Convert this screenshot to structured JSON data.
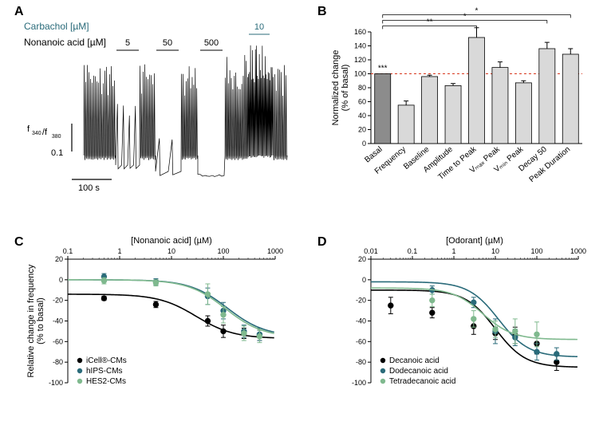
{
  "panelA": {
    "label": "A",
    "carbachol_label": "Carbachol [µM]",
    "carbachol_color": "#2a6b7a",
    "carbachol_conc": "10",
    "nonanoic_label": "Nonanoic acid [µM]",
    "nonanoic_concs": [
      "5",
      "50",
      "500"
    ],
    "y_scale_label": "f",
    "y_sub1": "340",
    "y_sub2": "380",
    "y_scale_divider": "/f",
    "y_scale_val": "0.1",
    "x_scale_val": "100 s",
    "trace_color": "#000000"
  },
  "panelB": {
    "label": "B",
    "ylabel_line1": "Normalized change",
    "ylabel_line2": "(% of basal)",
    "ylim": [
      0,
      160
    ],
    "ytick_step": 20,
    "ref_line": 100,
    "ref_line_color": "#d9381e",
    "categories": [
      "Basal",
      "Frequency",
      "Baseline",
      "Amplitude",
      "Time to Peak",
      "Vₘₐₓ Peak",
      "Vₘᵢₙ Peak",
      "Decay 50",
      "Peak Duration"
    ],
    "values": [
      100,
      55,
      96,
      83,
      152,
      109,
      87,
      136,
      128
    ],
    "errors": [
      0,
      6,
      2,
      3,
      14,
      8,
      3,
      9,
      8
    ],
    "bar_colors": [
      "#8c8c8c",
      "#d9d9d9",
      "#d9d9d9",
      "#d9d9d9",
      "#d9d9d9",
      "#d9d9d9",
      "#d9d9d9",
      "#d9d9d9",
      "#d9d9d9"
    ],
    "bar_border": "#000000",
    "sig_markers": [
      {
        "from": 0,
        "to": 4,
        "label": "**",
        "y": 168
      },
      {
        "from": 0,
        "to": 7,
        "label": "*",
        "y": 178
      },
      {
        "from": 0,
        "to": 8,
        "label": "*",
        "y": 188
      }
    ],
    "basal_star": "***",
    "label_fontsize": 10
  },
  "panelC": {
    "label": "C",
    "xlabel": "[Nonanoic acid] (µM)",
    "ylabel_line1": "Relative change in frequency",
    "ylabel_line2": "(% to basal)",
    "xlim": [
      0.1,
      1000
    ],
    "xticks": [
      0.1,
      1,
      10,
      100,
      1000
    ],
    "ylim": [
      -100,
      20
    ],
    "ytick_step": 20,
    "series": [
      {
        "name": "iCell®-CMs",
        "color": "#000000",
        "x": [
          0.5,
          5,
          50,
          100,
          250,
          500
        ],
        "y": [
          -18,
          -24,
          -40,
          -50,
          -52,
          -54
        ],
        "err": [
          2,
          3,
          5,
          6,
          5,
          5
        ],
        "curve_plateau_top": -14,
        "curve_plateau_bot": -57,
        "curve_ec50": 30
      },
      {
        "name": "hIPS-CMs",
        "color": "#2a6b7a",
        "x": [
          0.5,
          5,
          50,
          100,
          250,
          500
        ],
        "y": [
          3,
          -2,
          -16,
          -30,
          -50,
          -53
        ],
        "err": [
          3,
          3,
          8,
          8,
          6,
          6
        ],
        "curve_plateau_top": 0,
        "curve_plateau_bot": -55,
        "curve_ec50": 120
      },
      {
        "name": "HES2-CMs",
        "color": "#7fb98e",
        "x": [
          0.5,
          5,
          50,
          100,
          250,
          500
        ],
        "y": [
          -1,
          -3,
          -14,
          -34,
          -52,
          -55
        ],
        "err": [
          3,
          3,
          10,
          8,
          7,
          6
        ],
        "curve_plateau_top": 0,
        "curve_plateau_bot": -56,
        "curve_ec50": 110
      }
    ],
    "label_fontsize": 11
  },
  "panelD": {
    "label": "D",
    "xlabel": "[Odorant] (µM)",
    "ylabel_line1": "",
    "ylabel_line2": "",
    "xlim": [
      0.01,
      1000
    ],
    "xticks": [
      0.01,
      0.1,
      1,
      10,
      100,
      1000
    ],
    "ylim": [
      -100,
      20
    ],
    "ytick_step": 20,
    "series": [
      {
        "name": "Decanoic acid",
        "color": "#000000",
        "x": [
          0.03,
          0.3,
          3,
          10,
          30,
          100,
          300
        ],
        "y": [
          -25,
          -32,
          -45,
          -52,
          -54,
          -62,
          -80
        ],
        "err": [
          8,
          5,
          8,
          6,
          8,
          10,
          8
        ],
        "curve_plateau_top": -10,
        "curve_plateau_bot": -85,
        "curve_ec50": 10
      },
      {
        "name": "Dodecanoic acid",
        "color": "#2a6b7a",
        "x": [
          0.3,
          3,
          10,
          30,
          100,
          300
        ],
        "y": [
          -10,
          -22,
          -50,
          -56,
          -70,
          -72
        ],
        "err": [
          4,
          5,
          12,
          8,
          8,
          6
        ],
        "curve_plateau_top": -2,
        "curve_plateau_bot": -75,
        "curve_ec50": 12
      },
      {
        "name": "Tetradecanoic acid",
        "color": "#7fb98e",
        "x": [
          0.3,
          3,
          10,
          30,
          100
        ],
        "y": [
          -20,
          -38,
          -48,
          -50,
          -53
        ],
        "err": [
          6,
          8,
          8,
          12,
          12
        ],
        "curve_plateau_top": -8,
        "curve_plateau_bot": -58,
        "curve_ec50": 5
      }
    ],
    "label_fontsize": 11
  }
}
